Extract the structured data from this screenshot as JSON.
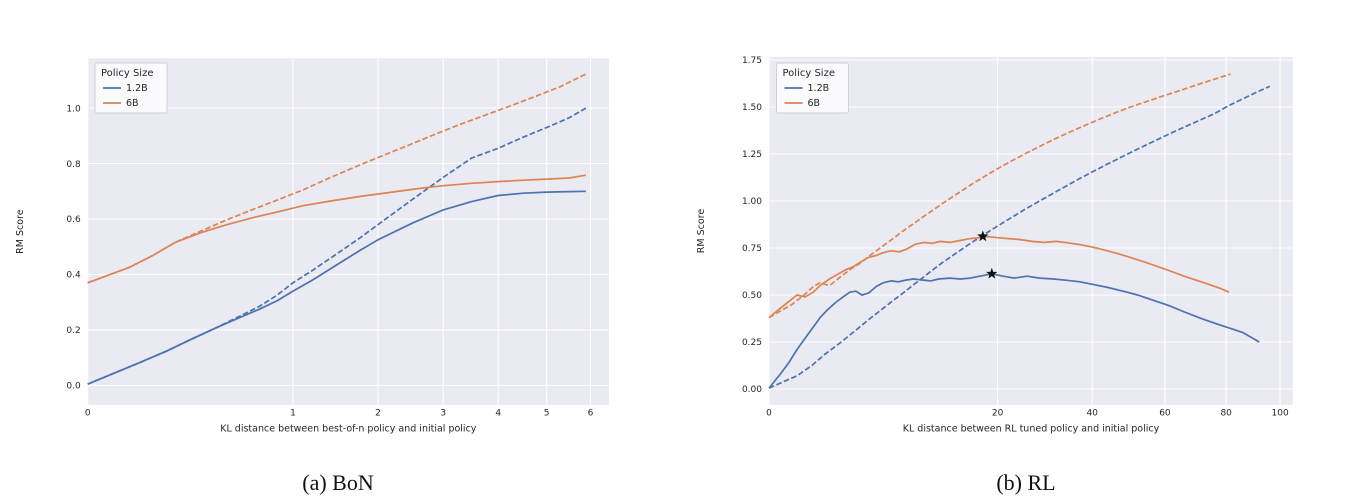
{
  "colors": {
    "blue": "#4c72b0",
    "orange": "#dd8452",
    "plot_bg": "#eaeaf2",
    "grid": "#ffffff",
    "text": "#262626",
    "legend_bg": "#fbfbfd",
    "legend_border": "#cfcfd6",
    "star": "#111111"
  },
  "captions": {
    "a": "(a) BoN",
    "b": "(b) RL"
  },
  "legend": {
    "title": "Policy Size",
    "entries": [
      {
        "label": "1.2B",
        "color": "blue"
      },
      {
        "label": "6B",
        "color": "orange"
      }
    ]
  },
  "chart_data": [
    {
      "id": "bon",
      "type": "line",
      "caption": "(a) BoN",
      "xlabel": "KL distance between best-of-n policy and initial policy",
      "ylabel": "RM Score",
      "xscale": "sqrt",
      "xlim": [
        0,
        6.45
      ],
      "ylim": [
        -0.0705,
        1.1795
      ],
      "grid": true,
      "legend_position": "upper left",
      "xticks": {
        "values": [
          0,
          1,
          2,
          3,
          4,
          5,
          6
        ],
        "labels": [
          "0",
          "1",
          "2",
          "3",
          "4",
          "5",
          "6"
        ]
      },
      "yticks": {
        "values": [
          0,
          0.2,
          0.4,
          0.6,
          0.8,
          1.0
        ],
        "labels": [
          "0.0",
          "0.2",
          "0.4",
          "0.6",
          "0.8",
          "1.0"
        ]
      },
      "series": [
        {
          "name": "1.2B proxy RM (dashed)",
          "color": "blue",
          "dash": true,
          "x": [
            0,
            0.06,
            0.15,
            0.25,
            0.4,
            0.55,
            0.7,
            0.85,
            1.0,
            1.2,
            1.5,
            1.75,
            2.0,
            2.5,
            3.0,
            3.5,
            4.0,
            4.5,
            5.0,
            5.5,
            5.89
          ],
          "y": [
            0.005,
            0.08,
            0.125,
            0.165,
            0.21,
            0.25,
            0.285,
            0.325,
            0.37,
            0.415,
            0.48,
            0.53,
            0.58,
            0.67,
            0.75,
            0.82,
            0.855,
            0.895,
            0.93,
            0.965,
            1.0
          ]
        },
        {
          "name": "1.2B gold RM (solid)",
          "color": "blue",
          "dash": false,
          "x": [
            0,
            0.06,
            0.15,
            0.25,
            0.4,
            0.55,
            0.7,
            0.85,
            1.0,
            1.2,
            1.5,
            1.75,
            2.0,
            2.5,
            3.0,
            3.5,
            4.0,
            4.5,
            5.0,
            5.5,
            5.89
          ],
          "y": [
            0.005,
            0.08,
            0.125,
            0.165,
            0.21,
            0.245,
            0.275,
            0.305,
            0.34,
            0.38,
            0.44,
            0.485,
            0.525,
            0.585,
            0.633,
            0.663,
            0.685,
            0.693,
            0.697,
            0.699,
            0.7
          ]
        },
        {
          "name": "6B proxy RM (dashed)",
          "color": "orange",
          "dash": true,
          "x": [
            0,
            0.04,
            0.1,
            0.18,
            0.3,
            0.45,
            0.65,
            0.85,
            1.1,
            1.4,
            1.7,
            2.0,
            2.4,
            2.8,
            3.3,
            3.8,
            4.3,
            4.8,
            5.3,
            5.89
          ],
          "y": [
            0.37,
            0.425,
            0.468,
            0.515,
            0.555,
            0.595,
            0.635,
            0.668,
            0.705,
            0.75,
            0.788,
            0.822,
            0.862,
            0.9,
            0.942,
            0.978,
            1.012,
            1.045,
            1.077,
            1.123
          ]
        },
        {
          "name": "6B gold RM (solid)",
          "color": "orange",
          "dash": false,
          "x": [
            0,
            0.04,
            0.1,
            0.18,
            0.3,
            0.45,
            0.65,
            0.85,
            1.1,
            1.4,
            1.8,
            2.2,
            2.6,
            3.0,
            3.5,
            4.0,
            4.5,
            5.0,
            5.5,
            5.89
          ],
          "y": [
            0.37,
            0.425,
            0.468,
            0.515,
            0.55,
            0.578,
            0.605,
            0.625,
            0.648,
            0.665,
            0.683,
            0.697,
            0.71,
            0.72,
            0.729,
            0.735,
            0.74,
            0.744,
            0.748,
            0.758
          ]
        }
      ],
      "stars": []
    },
    {
      "id": "rl",
      "type": "line",
      "caption": "(b) RL",
      "xlabel": "KL distance between RL tuned policy and initial policy",
      "ylabel": "RM Score",
      "xscale": "sqrt",
      "xlim": [
        0,
        105.1
      ],
      "ylim": [
        -0.0851,
        1.766
      ],
      "grid": true,
      "legend_position": "upper left",
      "xticks": {
        "values": [
          0,
          20,
          40,
          60,
          80,
          100
        ],
        "labels": [
          "0",
          "20",
          "40",
          "60",
          "80",
          "100"
        ]
      },
      "yticks": {
        "values": [
          0,
          0.25,
          0.5,
          0.75,
          1.0,
          1.25,
          1.5,
          1.75
        ],
        "labels": [
          "0.00",
          "0.25",
          "0.50",
          "0.75",
          "1.00",
          "1.25",
          "1.50",
          "1.75"
        ]
      },
      "series": [
        {
          "name": "1.2B proxy RM (dashed)",
          "color": "blue",
          "dash": true,
          "x": [
            0,
            0.3,
            0.7,
            1.2,
            2,
            3,
            4,
            5,
            6,
            7,
            8,
            9,
            10,
            11.5,
            13,
            15,
            17,
            19,
            21,
            23,
            25,
            28,
            31,
            34,
            37,
            40,
            44,
            48,
            52,
            56,
            60,
            64,
            68,
            72,
            76,
            80,
            84,
            88,
            92,
            96
          ],
          "y": [
            0.005,
            0.07,
            0.125,
            0.185,
            0.25,
            0.32,
            0.38,
            0.43,
            0.475,
            0.515,
            0.555,
            0.59,
            0.625,
            0.672,
            0.712,
            0.762,
            0.807,
            0.848,
            0.885,
            0.92,
            0.955,
            1.0,
            1.042,
            1.082,
            1.12,
            1.155,
            1.198,
            1.238,
            1.276,
            1.312,
            1.346,
            1.378,
            1.408,
            1.437,
            1.465,
            1.5,
            1.53,
            1.558,
            1.585,
            1.61
          ]
        },
        {
          "name": "1.2B gold RM (solid)",
          "color": "blue",
          "dash": false,
          "x": [
            0,
            0.05,
            0.15,
            0.3,
            0.5,
            0.75,
            1.0,
            1.3,
            1.7,
            2.1,
            2.5,
            2.9,
            3.3,
            3.8,
            4.4,
            5.0,
            5.7,
            6.4,
            7.2,
            8.0,
            9.0,
            10,
            11,
            12.5,
            14,
            15.5,
            17,
            19,
            21,
            23,
            25.5,
            28,
            31,
            34,
            37,
            40.5,
            44,
            48,
            52,
            56,
            61,
            66,
            71,
            76,
            81,
            86,
            92
          ],
          "y": [
            0.005,
            0.08,
            0.14,
            0.21,
            0.27,
            0.33,
            0.38,
            0.42,
            0.46,
            0.49,
            0.515,
            0.52,
            0.5,
            0.51,
            0.545,
            0.565,
            0.575,
            0.57,
            0.58,
            0.585,
            0.58,
            0.575,
            0.585,
            0.59,
            0.585,
            0.59,
            0.6,
            0.613,
            0.6,
            0.59,
            0.6,
            0.59,
            0.585,
            0.578,
            0.57,
            0.555,
            0.54,
            0.52,
            0.5,
            0.475,
            0.445,
            0.41,
            0.378,
            0.35,
            0.325,
            0.3,
            0.25
          ]
        },
        {
          "name": "6B proxy RM (dashed)",
          "color": "orange",
          "dash": true,
          "x": [
            0,
            0.2,
            0.5,
            0.75,
            1,
            1.4,
            2,
            2.6,
            3.2,
            4,
            5,
            6,
            7,
            8,
            9,
            10,
            11,
            12,
            13.5,
            16,
            18,
            20,
            22,
            25,
            28,
            31,
            34,
            38,
            42,
            46,
            50,
            55,
            60,
            65,
            70,
            75,
            81.5
          ],
          "y": [
            0.38,
            0.45,
            0.505,
            0.545,
            0.565,
            0.55,
            0.6,
            0.64,
            0.67,
            0.715,
            0.762,
            0.805,
            0.845,
            0.88,
            0.913,
            0.943,
            0.972,
            1.0,
            1.037,
            1.095,
            1.135,
            1.172,
            1.205,
            1.25,
            1.29,
            1.327,
            1.36,
            1.4,
            1.437,
            1.47,
            1.5,
            1.532,
            1.562,
            1.59,
            1.617,
            1.643,
            1.675
          ]
        },
        {
          "name": "6B gold RM (solid)",
          "color": "orange",
          "dash": false,
          "x": [
            0,
            0.05,
            0.15,
            0.3,
            0.5,
            0.75,
            1.0,
            1.4,
            1.8,
            2.2,
            2.7,
            3.2,
            3.8,
            4.4,
            5.0,
            5.7,
            6.5,
            7.3,
            8.2,
            9.2,
            10.2,
            11.2,
            12.5,
            14,
            15.5,
            17,
            18.5,
            20,
            22,
            24,
            26.5,
            29,
            31.5,
            34,
            37,
            40,
            43,
            46.5,
            50,
            54,
            58,
            62,
            66,
            70,
            74,
            78,
            81
          ],
          "y": [
            0.38,
            0.43,
            0.465,
            0.5,
            0.49,
            0.515,
            0.55,
            0.585,
            0.61,
            0.632,
            0.65,
            0.675,
            0.7,
            0.71,
            0.725,
            0.735,
            0.73,
            0.745,
            0.77,
            0.78,
            0.775,
            0.785,
            0.78,
            0.79,
            0.8,
            0.805,
            0.81,
            0.805,
            0.8,
            0.795,
            0.785,
            0.78,
            0.785,
            0.778,
            0.768,
            0.755,
            0.74,
            0.72,
            0.7,
            0.675,
            0.65,
            0.625,
            0.6,
            0.578,
            0.557,
            0.535,
            0.515
          ]
        }
      ],
      "stars": [
        {
          "x": 17.5,
          "y": 0.812,
          "on": "6B gold"
        },
        {
          "x": 19,
          "y": 0.613,
          "on": "1.2B gold"
        }
      ]
    }
  ]
}
